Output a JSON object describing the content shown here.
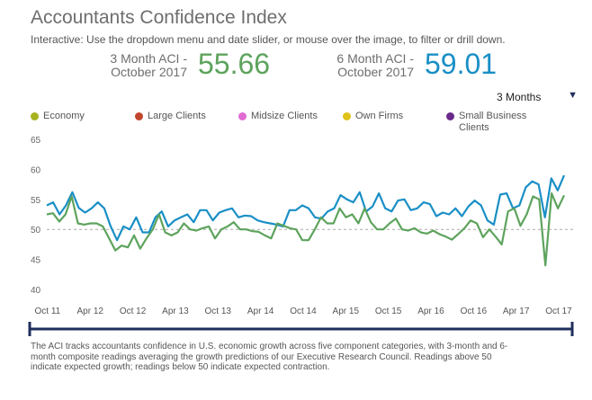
{
  "header": {
    "title": "Accountants Confidence Index",
    "subtitle": "Interactive: Use the dropdown menu and date slider, or mouse over the image, to filter or drill down."
  },
  "stats": {
    "three_month": {
      "label_line1": "3 Month ACI -",
      "label_line2": "October 2017",
      "value": "55.66",
      "color": "#5da35d"
    },
    "six_month": {
      "label_line1": "6 Month ACI -",
      "label_line2": "October 2017",
      "value": "59.01",
      "color": "#1a8fc6"
    }
  },
  "dropdown": {
    "selected": "3 Months",
    "arrow_icon": "triangle-down-icon"
  },
  "legend": [
    {
      "label": "Economy",
      "color": "#a6b21f"
    },
    {
      "label": "Large Clients",
      "color": "#c0462d"
    },
    {
      "label": "Midsize Clients",
      "color": "#e06bd1"
    },
    {
      "label": "Own Firms",
      "color": "#e0c21b"
    },
    {
      "label": "Small Business",
      "label2": "Clients",
      "color": "#6a2a8a"
    }
  ],
  "chart_data": {
    "type": "line",
    "y_ticks": [
      "65",
      "60",
      "55",
      "50",
      "45",
      "40"
    ],
    "ylim": [
      39,
      66
    ],
    "x_ticks": [
      "Oct 11",
      "Apr 12",
      "Oct 12",
      "Apr 13",
      "Oct 13",
      "Apr 14",
      "Oct 14",
      "Apr 15",
      "Oct 15",
      "Apr 16",
      "Oct 16",
      "Apr 17",
      "Oct 17"
    ],
    "x_start": "Sep 11",
    "x_end": "Oct 17",
    "reference_line": 50,
    "grid": false,
    "series": [
      {
        "color": "#1a8fc6",
        "values": [
          54,
          54.5,
          52.5,
          54,
          56.2,
          53.6,
          52.8,
          53.5,
          54.5,
          53.5,
          50.5,
          48.2,
          50.5,
          50,
          52,
          49.5,
          49.5,
          52,
          53,
          50.5,
          51.5,
          52,
          52.5,
          51.2,
          53.2,
          53.2,
          51.5,
          52.8,
          53.2,
          53.5,
          52,
          52.3,
          52.2,
          51.5,
          51.2,
          51,
          50.8,
          50.5,
          53.2,
          53.2,
          54,
          53.5,
          52,
          51.8,
          53,
          53.5,
          55.7,
          55,
          54.5,
          56.2,
          53,
          53.8,
          56,
          53.5,
          53,
          54.8,
          55,
          53.2,
          53.5,
          54.5,
          54.2,
          52.2,
          52.8,
          52.5,
          53.5,
          52.2,
          53.8,
          54.8,
          54,
          51.5,
          50.8,
          55.8,
          56,
          53.5,
          54,
          57,
          58,
          57.5,
          52,
          58.5,
          56.5,
          59
        ]
      },
      {
        "color": "#5da35d",
        "values": [
          52.5,
          52.7,
          51.3,
          52.5,
          55.5,
          51,
          50.8,
          51,
          51,
          50.5,
          48.5,
          46.5,
          47.3,
          47,
          49,
          46.8,
          48.5,
          50,
          52.5,
          49.5,
          49,
          49.5,
          51,
          50,
          49.8,
          50.2,
          50.5,
          48.5,
          50,
          50.5,
          51.2,
          50,
          50,
          49.7,
          49.6,
          49,
          48.5,
          51,
          50.6,
          50.2,
          50,
          48.2,
          48.2,
          50,
          52,
          51,
          51,
          53.5,
          52,
          52.5,
          51,
          53.5,
          51.2,
          50,
          50,
          51,
          51.8,
          50,
          49.8,
          50.2,
          49.5,
          49.3,
          49.8,
          49.2,
          48.8,
          48.3,
          49.2,
          50.2,
          51.5,
          51,
          48.7,
          50,
          48.8,
          47.5,
          53,
          53.5,
          50.6,
          52.5,
          55.5,
          55,
          44,
          56,
          53.5,
          55.66
        ]
      }
    ]
  },
  "slider": {
    "color": "#1f2e5c"
  },
  "footnote": "The ACI tracks accountants confidence in U.S. economic growth across five component categories, with 3-month and 6-month composite readings averaging the growth predictions of our Executive Research Council. Readings above 50 indicate expected growth; readings below 50 indicate expected contraction."
}
